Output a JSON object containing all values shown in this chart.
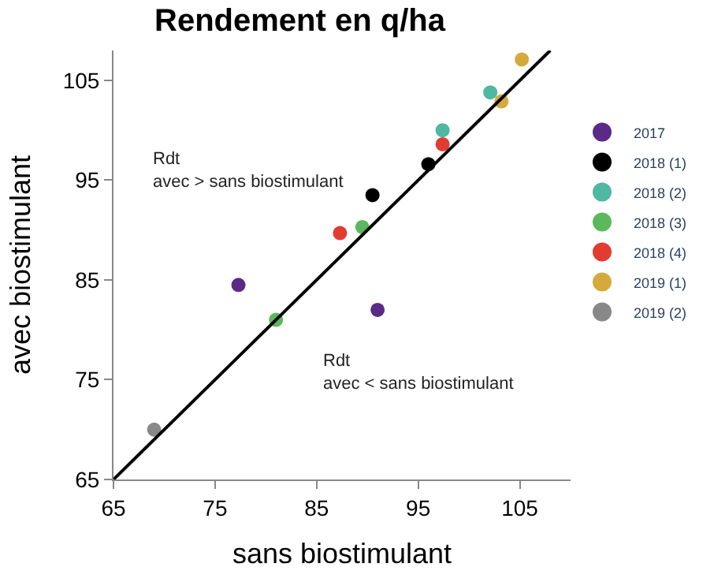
{
  "chart_data": {
    "type": "scatter",
    "title": "Rendement en q/ha",
    "xlabel": "sans biostimulant",
    "ylabel": "avec biostimulant",
    "xlim": [
      65,
      110
    ],
    "ylim": [
      65,
      108
    ],
    "xticks": [
      65,
      75,
      85,
      95,
      105
    ],
    "yticks": [
      65,
      75,
      85,
      95,
      105
    ],
    "legend": "right",
    "marker": "circle",
    "annotations": [
      "Rdt\navec > sans biostimulant",
      "Rdt\navec < sans biostimulant"
    ],
    "series": [
      {
        "name": "2017",
        "color": "#5b2a86",
        "x": [
          77.3,
          91.0
        ],
        "values": [
          84.5,
          82.0
        ]
      },
      {
        "name": "2018 (1)",
        "color": "#000000",
        "x": [
          90.5,
          96.0
        ],
        "values": [
          93.5,
          96.6
        ]
      },
      {
        "name": "2018 (2)",
        "color": "#4fb8a0",
        "x": [
          97.4,
          102.1
        ],
        "values": [
          100.0,
          103.8
        ]
      },
      {
        "name": "2018 (3)",
        "color": "#5cb85c",
        "x": [
          81.0,
          89.5
        ],
        "values": [
          81.0,
          90.3
        ]
      },
      {
        "name": "2018 (4)",
        "color": "#e03c31",
        "x": [
          87.3,
          97.4
        ],
        "values": [
          89.7,
          98.6
        ]
      },
      {
        "name": "2019 (1)",
        "color": "#d4aa3c",
        "x": [
          103.2,
          105.2
        ],
        "values": [
          102.9,
          107.1
        ]
      },
      {
        "name": "2019 (2)",
        "color": "#888888",
        "x": [
          69.0
        ],
        "values": [
          70.0
        ]
      },
      {
        "type": "line",
        "color": "#000000",
        "x": [
          65,
          108
        ],
        "values": [
          65,
          108
        ],
        "marker": "none",
        "line_style": "solid"
      }
    ]
  }
}
